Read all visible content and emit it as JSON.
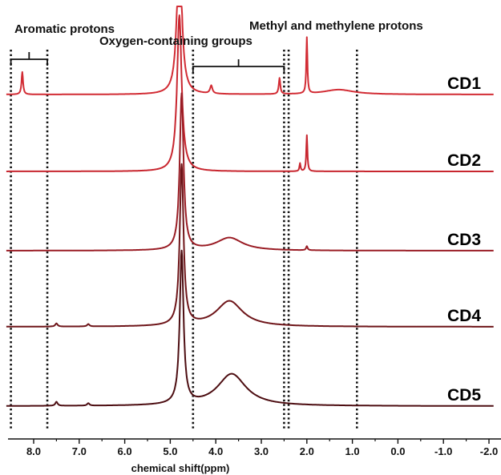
{
  "chart_data": {
    "type": "line",
    "title": "",
    "xlabel": "chemical shift(ppm)",
    "ylabel": "",
    "x_reversed": true,
    "xlim": [
      8.6,
      -2.1
    ],
    "x_ticks": [
      "8.0",
      "7.0",
      "6.0",
      "5.0",
      "4.0",
      "3.0",
      "2.0",
      "1.0",
      "0.0",
      "-1.0",
      "-2.0"
    ],
    "x_tick_values": [
      8.0,
      7.0,
      6.0,
      5.0,
      4.0,
      3.0,
      2.0,
      1.0,
      0.0,
      -1.0,
      -2.0
    ],
    "grid": false,
    "regions": [
      {
        "label": "Aromatic protons",
        "from_ppm": 8.5,
        "to_ppm": 7.7
      },
      {
        "label": "Oxygen-containing groups",
        "from_ppm": 4.5,
        "to_ppm": 2.5
      },
      {
        "label": "Methyl and methylene protons",
        "from_ppm": 2.4,
        "to_ppm": 0.9
      }
    ],
    "series": [
      {
        "name": "CD1",
        "color": "#d22c34",
        "peaks": [
          {
            "ppm": 8.25,
            "height": 28,
            "width": 0.02
          },
          {
            "ppm": 4.8,
            "height": 200,
            "width": 0.06
          },
          {
            "ppm": 4.1,
            "height": 10,
            "width": 0.03
          },
          {
            "ppm": 2.6,
            "height": 20,
            "width": 0.02
          },
          {
            "ppm": 2.0,
            "height": 70,
            "width": 0.015
          },
          {
            "ppm": 1.3,
            "height": 6,
            "width": 0.4
          }
        ]
      },
      {
        "name": "CD2",
        "color": "#c8262f",
        "peaks": [
          {
            "ppm": 4.8,
            "height": 195,
            "width": 0.06
          },
          {
            "ppm": 2.0,
            "height": 45,
            "width": 0.015
          },
          {
            "ppm": 2.15,
            "height": 10,
            "width": 0.015
          }
        ]
      },
      {
        "name": "CD3",
        "color": "#9a1d25",
        "peaks": [
          {
            "ppm": 4.75,
            "height": 195,
            "width": 0.05
          },
          {
            "ppm": 3.7,
            "height": 16,
            "width": 0.35
          },
          {
            "ppm": 2.0,
            "height": 5,
            "width": 0.02
          }
        ]
      },
      {
        "name": "CD4",
        "color": "#6e1519",
        "peaks": [
          {
            "ppm": 4.75,
            "height": 200,
            "width": 0.05
          },
          {
            "ppm": 3.7,
            "height": 32,
            "width": 0.35
          },
          {
            "ppm": 7.5,
            "height": 4,
            "width": 0.03
          },
          {
            "ppm": 6.8,
            "height": 3,
            "width": 0.03
          }
        ]
      },
      {
        "name": "CD5",
        "color": "#4d0e12",
        "peaks": [
          {
            "ppm": 4.75,
            "height": 190,
            "width": 0.05
          },
          {
            "ppm": 3.65,
            "height": 40,
            "width": 0.38
          },
          {
            "ppm": 7.5,
            "height": 5,
            "width": 0.03
          },
          {
            "ppm": 6.8,
            "height": 3,
            "width": 0.03
          }
        ]
      }
    ]
  }
}
